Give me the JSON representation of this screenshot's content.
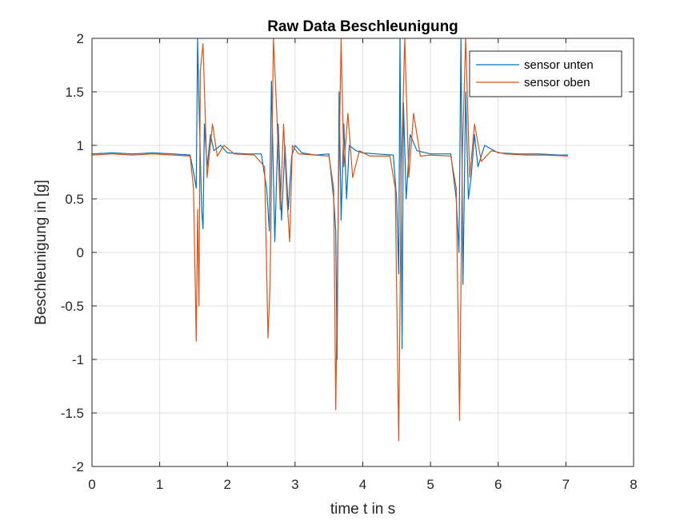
{
  "chart_data": {
    "type": "line",
    "title": "Raw Data Beschleunigung",
    "xlabel": "time t in s",
    "ylabel": "Beschleunigung in [g]",
    "xlim": [
      0,
      8
    ],
    "ylim": [
      -2,
      2
    ],
    "x_ticks": [
      "0",
      "1",
      "2",
      "3",
      "4",
      "5",
      "6",
      "7",
      "8"
    ],
    "y_ticks": [
      "2",
      "1.5",
      "1",
      "0.5",
      "0",
      "-0.5",
      "-1",
      "-1.5",
      "-2"
    ],
    "grid": true,
    "legend_position": "top-right",
    "series": [
      {
        "name": "sensor unten",
        "color": "#0072BD",
        "points": [
          [
            0,
            0.92
          ],
          [
            0.3,
            0.93
          ],
          [
            0.6,
            0.92
          ],
          [
            0.9,
            0.93
          ],
          [
            1.2,
            0.92
          ],
          [
            1.45,
            0.91
          ],
          [
            1.5,
            0.75
          ],
          [
            1.54,
            0.6
          ],
          [
            1.56,
            2.0
          ],
          [
            1.58,
            1.4
          ],
          [
            1.6,
            0.9
          ],
          [
            1.62,
            0.4
          ],
          [
            1.64,
            0.22
          ],
          [
            1.66,
            1.2
          ],
          [
            1.7,
            0.8
          ],
          [
            1.75,
            1.1
          ],
          [
            1.8,
            0.95
          ],
          [
            1.9,
            1.0
          ],
          [
            2.0,
            0.93
          ],
          [
            2.3,
            0.92
          ],
          [
            2.5,
            0.92
          ],
          [
            2.58,
            0.6
          ],
          [
            2.62,
            0.2
          ],
          [
            2.65,
            1.6
          ],
          [
            2.7,
            0.1
          ],
          [
            2.75,
            1.2
          ],
          [
            2.8,
            0.3
          ],
          [
            2.85,
            1.0
          ],
          [
            2.9,
            0.4
          ],
          [
            2.95,
            0.9
          ],
          [
            3.0,
            1.0
          ],
          [
            3.1,
            0.93
          ],
          [
            3.3,
            0.91
          ],
          [
            3.5,
            0.92
          ],
          [
            3.57,
            0.5
          ],
          [
            3.6,
            0.2
          ],
          [
            3.62,
            -1.0
          ],
          [
            3.65,
            1.5
          ],
          [
            3.68,
            0.3
          ],
          [
            3.72,
            1.2
          ],
          [
            3.76,
            0.5
          ],
          [
            3.8,
            1.0
          ],
          [
            3.9,
            0.95
          ],
          [
            4.0,
            0.93
          ],
          [
            4.2,
            0.92
          ],
          [
            4.45,
            0.91
          ],
          [
            4.5,
            0.5
          ],
          [
            4.53,
            -0.2
          ],
          [
            4.55,
            2.0
          ],
          [
            4.58,
            -0.9
          ],
          [
            4.6,
            1.4
          ],
          [
            4.64,
            0.5
          ],
          [
            4.7,
            1.1
          ],
          [
            4.8,
            0.95
          ],
          [
            5.0,
            0.92
          ],
          [
            5.3,
            0.92
          ],
          [
            5.38,
            0.5
          ],
          [
            5.42,
            0.0
          ],
          [
            5.45,
            2.0
          ],
          [
            5.48,
            -0.3
          ],
          [
            5.52,
            1.5
          ],
          [
            5.56,
            0.5
          ],
          [
            5.6,
            0.7
          ],
          [
            5.65,
            1.1
          ],
          [
            5.7,
            0.8
          ],
          [
            5.8,
            1.0
          ],
          [
            6.0,
            0.93
          ],
          [
            6.3,
            0.92
          ],
          [
            6.6,
            0.92
          ],
          [
            6.9,
            0.91
          ],
          [
            7.03,
            0.91
          ]
        ]
      },
      {
        "name": "sensor oben",
        "color": "#D95319",
        "points": [
          [
            0,
            0.91
          ],
          [
            0.3,
            0.92
          ],
          [
            0.6,
            0.91
          ],
          [
            0.9,
            0.92
          ],
          [
            1.2,
            0.91
          ],
          [
            1.45,
            0.9
          ],
          [
            1.5,
            0.6
          ],
          [
            1.54,
            -0.83
          ],
          [
            1.56,
            0.4
          ],
          [
            1.58,
            -0.5
          ],
          [
            1.6,
            1.7
          ],
          [
            1.64,
            1.95
          ],
          [
            1.7,
            0.7
          ],
          [
            1.78,
            1.2
          ],
          [
            1.85,
            0.9
          ],
          [
            1.95,
            1.0
          ],
          [
            2.1,
            0.92
          ],
          [
            2.4,
            0.91
          ],
          [
            2.55,
            0.8
          ],
          [
            2.6,
            -0.8
          ],
          [
            2.63,
            -0.3
          ],
          [
            2.68,
            2.0
          ],
          [
            2.73,
            1.3
          ],
          [
            2.78,
            0.4
          ],
          [
            2.83,
            1.2
          ],
          [
            2.88,
            0.5
          ],
          [
            2.92,
            0.1
          ],
          [
            2.96,
            1.0
          ],
          [
            3.05,
            0.92
          ],
          [
            3.3,
            0.91
          ],
          [
            3.5,
            0.9
          ],
          [
            3.57,
            0.6
          ],
          [
            3.6,
            -1.47
          ],
          [
            3.64,
            0.5
          ],
          [
            3.68,
            2.0
          ],
          [
            3.72,
            0.8
          ],
          [
            3.78,
            1.3
          ],
          [
            3.85,
            0.7
          ],
          [
            3.95,
            0.95
          ],
          [
            4.1,
            0.9
          ],
          [
            4.4,
            0.9
          ],
          [
            4.48,
            0.6
          ],
          [
            4.53,
            -1.76
          ],
          [
            4.57,
            0.8
          ],
          [
            4.62,
            2.0
          ],
          [
            4.68,
            0.7
          ],
          [
            4.75,
            1.3
          ],
          [
            4.85,
            0.9
          ],
          [
            5.0,
            0.91
          ],
          [
            5.3,
            0.9
          ],
          [
            5.38,
            0.6
          ],
          [
            5.43,
            -1.57
          ],
          [
            5.47,
            0.9
          ],
          [
            5.52,
            2.0
          ],
          [
            5.58,
            0.7
          ],
          [
            5.65,
            1.2
          ],
          [
            5.75,
            0.85
          ],
          [
            5.9,
            0.95
          ],
          [
            6.1,
            0.92
          ],
          [
            6.4,
            0.91
          ],
          [
            6.7,
            0.91
          ],
          [
            7.03,
            0.9
          ]
        ]
      }
    ]
  }
}
